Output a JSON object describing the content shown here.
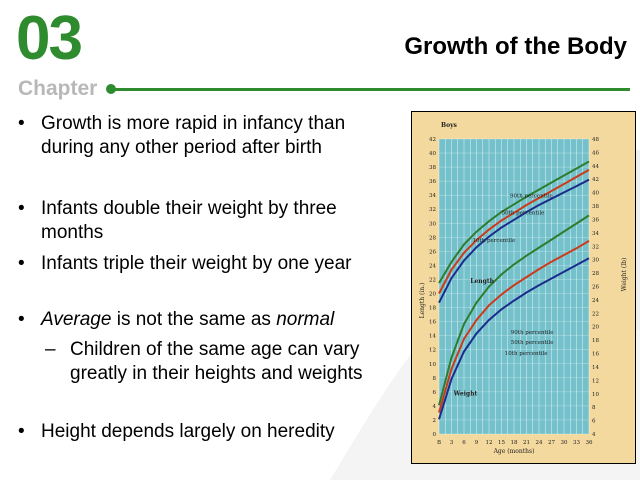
{
  "header": {
    "chapter_number": "03",
    "chapter_label": "Chapter",
    "title": "Growth of the Body",
    "accent_color": "#2e8b2e"
  },
  "bullets": [
    {
      "level": 1,
      "text": "Growth is more rapid in infancy than during any other period after birth"
    },
    {
      "level": 1,
      "text": "Infants double their weight by three months"
    },
    {
      "level": 1,
      "text": "Infants triple their weight by one year"
    },
    {
      "level": 1,
      "text_italic_1": "Average",
      "text_mid": " is not the same as ",
      "text_italic_2": "normal"
    },
    {
      "level": 2,
      "text": "Children of the same age can vary greatly in their heights and weights"
    },
    {
      "level": 1,
      "text": "Height depends largely on heredity"
    }
  ],
  "bullet_marks": {
    "level1": "•",
    "level2": "–"
  },
  "chart_data": {
    "type": "line",
    "title": "Boys",
    "xlabel": "Age (months)",
    "ylabel_left": "Length (in.)",
    "ylabel_right": "Weight (lb)",
    "x_ticks": [
      "B",
      "3",
      "6",
      "9",
      "12",
      "15",
      "18",
      "21",
      "24",
      "27",
      "30",
      "33",
      "36"
    ],
    "left_ticks": [
      "0",
      "2",
      "4",
      "6",
      "8",
      "10",
      "12",
      "14",
      "16",
      "18",
      "20",
      "22",
      "24",
      "26",
      "28",
      "30",
      "32",
      "34",
      "36",
      "38",
      "40",
      "42"
    ],
    "right_ticks": [
      "4",
      "6",
      "8",
      "10",
      "12",
      "14",
      "16",
      "18",
      "20",
      "22",
      "24",
      "26",
      "28",
      "30",
      "32",
      "34",
      "36",
      "38",
      "40",
      "42",
      "44",
      "46",
      "48"
    ],
    "group_labels": {
      "length": "Length",
      "weight": "Weight"
    },
    "xlim": [
      0,
      36
    ],
    "left_ylim": [
      0,
      42
    ],
    "right_ylim": [
      4,
      48
    ],
    "series": [
      {
        "name": "90th percentile",
        "group": "length",
        "color": "#2e7d2e",
        "x": [
          0,
          3,
          6,
          9,
          12,
          15,
          18,
          21,
          24,
          27,
          30,
          33,
          36
        ],
        "y": [
          21.5,
          24.5,
          27,
          28.8,
          30.3,
          31.6,
          32.7,
          33.8,
          34.8,
          35.8,
          36.8,
          37.8,
          38.8
        ]
      },
      {
        "name": "50th percentile",
        "group": "length",
        "color": "#cc3a1c",
        "x": [
          0,
          3,
          6,
          9,
          12,
          15,
          18,
          21,
          24,
          27,
          30,
          33,
          36
        ],
        "y": [
          20,
          23.4,
          25.8,
          27.6,
          29.1,
          30.4,
          31.5,
          32.6,
          33.6,
          34.6,
          35.6,
          36.6,
          37.6
        ]
      },
      {
        "name": "10th percentile",
        "group": "length",
        "color": "#1c2c8c",
        "x": [
          0,
          3,
          6,
          9,
          12,
          15,
          18,
          21,
          24,
          27,
          30,
          33,
          36
        ],
        "y": [
          18.7,
          22.2,
          24.7,
          26.6,
          28.1,
          29.4,
          30.5,
          31.6,
          32.6,
          33.5,
          34.4,
          35.3,
          36.2
        ]
      },
      {
        "name": "90th percentile",
        "group": "weight",
        "color": "#2e7d2e",
        "x": [
          0,
          3,
          6,
          9,
          12,
          15,
          18,
          21,
          24,
          27,
          30,
          33,
          36
        ],
        "y": [
          8.3,
          15.4,
          20.4,
          23.6,
          26,
          27.8,
          29.3,
          30.6,
          31.8,
          33,
          34.2,
          35.4,
          36.6
        ]
      },
      {
        "name": "50th percentile",
        "group": "weight",
        "color": "#cc3a1c",
        "x": [
          0,
          3,
          6,
          9,
          12,
          15,
          18,
          21,
          24,
          27,
          30,
          33,
          36
        ],
        "y": [
          7.2,
          13.7,
          18.2,
          21,
          23.2,
          24.8,
          26.2,
          27.4,
          28.6,
          29.7,
          30.7,
          31.7,
          32.8
        ]
      },
      {
        "name": "10th percentile",
        "group": "weight",
        "color": "#1c2c8c",
        "x": [
          0,
          3,
          6,
          9,
          12,
          15,
          18,
          21,
          24,
          27,
          30,
          33,
          36
        ],
        "y": [
          6.2,
          12.2,
          16.3,
          19,
          21,
          22.6,
          23.9,
          25.1,
          26.2,
          27.2,
          28.2,
          29.2,
          30.2
        ]
      }
    ],
    "plot_color": "#74c1cc",
    "background_color": "#f4d99e",
    "grid": true
  }
}
